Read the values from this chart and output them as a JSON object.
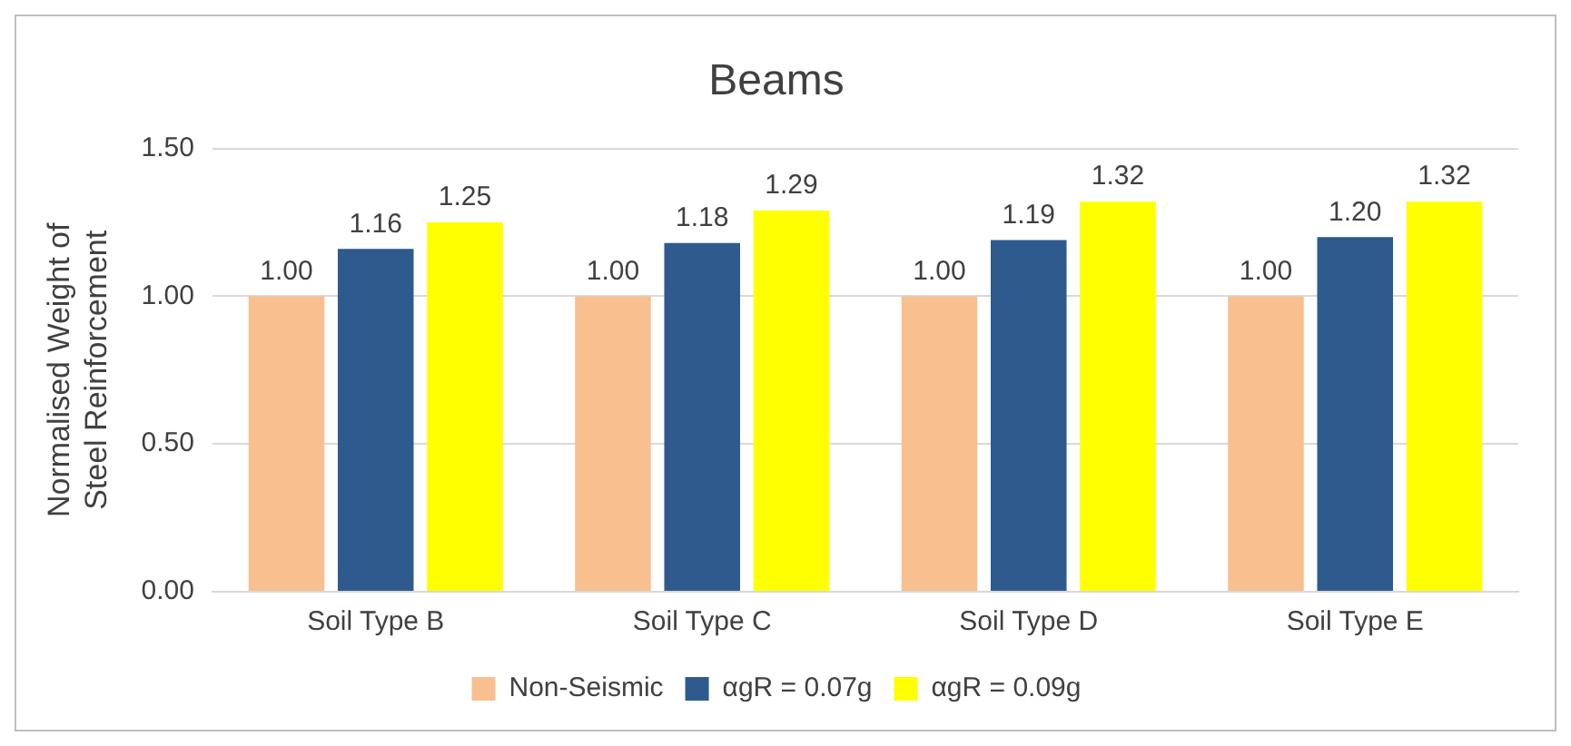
{
  "chart_data": {
    "type": "bar",
    "title": "Beams",
    "ylabel": "Normalised Weight of\nSteel Reinforcement",
    "categories": [
      "Soil Type B",
      "Soil Type C",
      "Soil Type D",
      "Soil Type E"
    ],
    "series": [
      {
        "name": "Non-Seismic",
        "color": "#f8bf8f",
        "values": [
          1.0,
          1.0,
          1.0,
          1.0
        ],
        "value_labels": [
          "1.00",
          "1.00",
          "1.00",
          "1.00"
        ]
      },
      {
        "name": "αgR = 0.07g",
        "color": "#2e5a8e",
        "values": [
          1.16,
          1.18,
          1.19,
          1.2
        ],
        "value_labels": [
          "1.16",
          "1.18",
          "1.19",
          "1.20"
        ]
      },
      {
        "name": "αgR = 0.09g",
        "color": "#ffff00",
        "values": [
          1.25,
          1.29,
          1.32,
          1.32
        ],
        "value_labels": [
          "1.25",
          "1.29",
          "1.32",
          "1.32"
        ]
      }
    ],
    "ylim": [
      0,
      1.5
    ],
    "yticks": [
      {
        "value": 0,
        "label": "0.00"
      },
      {
        "value": 0.5,
        "label": "0.50"
      },
      {
        "value": 1,
        "label": "1.00"
      },
      {
        "value": 1.5,
        "label": "1.50"
      }
    ],
    "grid": "y",
    "legend": "bottom"
  }
}
